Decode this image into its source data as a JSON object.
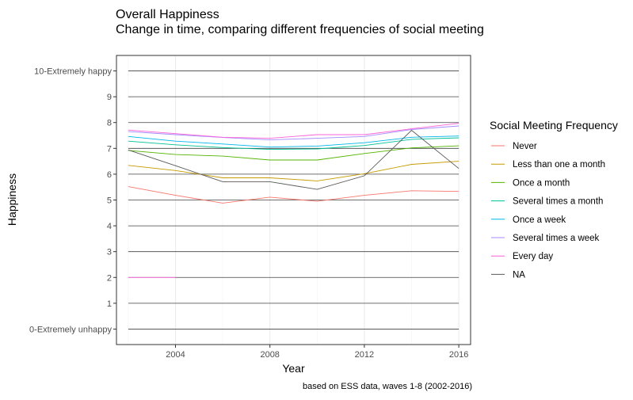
{
  "chart_data": {
    "type": "line",
    "title": "Overall Happiness",
    "subtitle": "Change in time, comparing different frequencies of social meeting",
    "xlabel": "Year",
    "ylabel": "Happiness",
    "caption": "based on ESS data, waves 1-8 (2002-2016)",
    "xlim": [
      2001.5,
      2016.5
    ],
    "ylim": [
      -0.6,
      10.6
    ],
    "x_ticks": [
      {
        "value": 2004,
        "label": "2004"
      },
      {
        "value": 2008,
        "label": "2008"
      },
      {
        "value": 2012,
        "label": "2012"
      },
      {
        "value": 2016,
        "label": "2016"
      }
    ],
    "y_ticks": [
      {
        "value": 0,
        "label": "0-Extremely unhappy"
      },
      {
        "value": 1,
        "label": "1"
      },
      {
        "value": 2,
        "label": "2"
      },
      {
        "value": 3,
        "label": "3"
      },
      {
        "value": 4,
        "label": "4"
      },
      {
        "value": 5,
        "label": "5"
      },
      {
        "value": 6,
        "label": "6"
      },
      {
        "value": 7,
        "label": "7"
      },
      {
        "value": 8,
        "label": "8"
      },
      {
        "value": 9,
        "label": "9"
      },
      {
        "value": 10,
        "label": "10-Extremely happy"
      }
    ],
    "grid": true,
    "legend_title": "Social Meeting Frequency",
    "legend_position": "right",
    "series": [
      {
        "name": "Never",
        "color": "#F8766D",
        "x": [
          2002,
          2004,
          2006,
          2008,
          2010,
          2012,
          2014,
          2016
        ],
        "y": [
          5.52,
          5.18,
          4.88,
          5.11,
          4.95,
          5.18,
          5.36,
          5.33
        ]
      },
      {
        "name": "Less than one a month",
        "color": "#C49A00",
        "x": [
          2002,
          2004,
          2006,
          2008,
          2010,
          2012,
          2014,
          2016
        ],
        "y": [
          6.34,
          6.14,
          5.86,
          5.86,
          5.74,
          6.02,
          6.38,
          6.5
        ]
      },
      {
        "name": "Once a month",
        "color": "#53B400",
        "x": [
          2002,
          2004,
          2006,
          2008,
          2010,
          2012,
          2014,
          2016
        ],
        "y": [
          6.92,
          6.76,
          6.7,
          6.55,
          6.55,
          6.8,
          7.02,
          7.1
        ]
      },
      {
        "name": "Several times a month",
        "color": "#00C094",
        "x": [
          2002,
          2004,
          2006,
          2008,
          2010,
          2012,
          2014,
          2016
        ],
        "y": [
          7.28,
          7.14,
          7.03,
          6.96,
          6.98,
          7.11,
          7.35,
          7.41
        ]
      },
      {
        "name": "Once a week",
        "color": "#00B6EB",
        "x": [
          2002,
          2004,
          2006,
          2008,
          2010,
          2012,
          2014,
          2016
        ],
        "y": [
          7.46,
          7.28,
          7.17,
          7.05,
          7.09,
          7.22,
          7.43,
          7.48
        ]
      },
      {
        "name": "Several times a week",
        "color": "#A58AFF",
        "x": [
          2002,
          2004,
          2006,
          2008,
          2010,
          2012,
          2014,
          2016
        ],
        "y": [
          7.65,
          7.53,
          7.42,
          7.33,
          7.39,
          7.46,
          7.73,
          7.87
        ]
      },
      {
        "name": "Every day",
        "color": "#FB61D7",
        "x": [
          2002,
          2004,
          2006,
          2008,
          2010,
          2012,
          2014,
          2016
        ],
        "y": [
          7.71,
          7.57,
          7.43,
          7.39,
          7.53,
          7.53,
          7.76,
          7.97
        ],
        "extra_segments": [
          {
            "x": [
              2002,
              2004
            ],
            "y": [
              2.0,
              2.0
            ]
          }
        ]
      },
      {
        "name": "NA",
        "color": "#595959",
        "x": [
          2002,
          2004,
          2006,
          2008,
          2010,
          2012,
          2014,
          2016
        ],
        "y": [
          6.94,
          6.33,
          5.71,
          5.71,
          5.41,
          5.94,
          7.7,
          6.22
        ]
      }
    ]
  }
}
